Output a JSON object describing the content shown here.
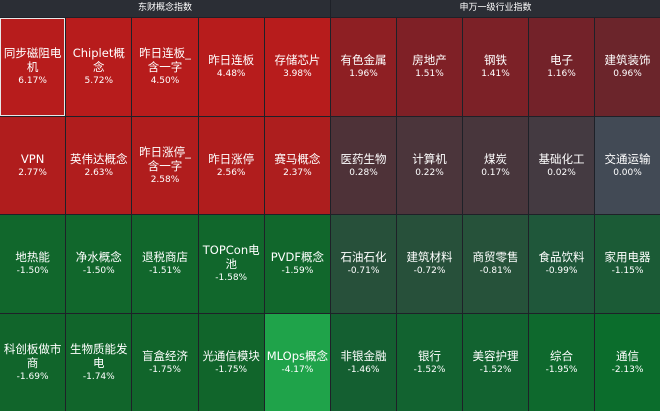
{
  "left_panel": {
    "title": "东财概念指数",
    "tiles": [
      {
        "name": "同步磁阻电机",
        "change": "6.17%",
        "color": "#b71c1c",
        "selected": true
      },
      {
        "name": "Chiplet概念",
        "change": "5.72%",
        "color": "#b71c1c"
      },
      {
        "name": "昨日连板_含一字",
        "change": "4.50%",
        "color": "#b71c1c"
      },
      {
        "name": "昨日连板",
        "change": "4.48%",
        "color": "#b71c1c"
      },
      {
        "name": "存储芯片",
        "change": "3.98%",
        "color": "#b71c1c"
      },
      {
        "name": "VPN",
        "change": "2.77%",
        "color": "#b01d1d"
      },
      {
        "name": "英伟达概念",
        "change": "2.63%",
        "color": "#b01d1d"
      },
      {
        "name": "昨日涨停_含一字",
        "change": "2.58%",
        "color": "#b01d1d"
      },
      {
        "name": "昨日涨停",
        "change": "2.56%",
        "color": "#b01d1d"
      },
      {
        "name": "赛马概念",
        "change": "2.37%",
        "color": "#ad1e1e"
      },
      {
        "name": "地热能",
        "change": "-1.50%",
        "color": "#11672c"
      },
      {
        "name": "净水概念",
        "change": "-1.50%",
        "color": "#11672c"
      },
      {
        "name": "退税商店",
        "change": "-1.51%",
        "color": "#11672c"
      },
      {
        "name": "TOPCon电池",
        "change": "-1.58%",
        "color": "#11672c"
      },
      {
        "name": "PVDF概念",
        "change": "-1.59%",
        "color": "#11672c"
      },
      {
        "name": "科创板做市商",
        "change": "-1.69%",
        "color": "#11652b"
      },
      {
        "name": "生物质能发电",
        "change": "-1.74%",
        "color": "#11652b"
      },
      {
        "name": "盲盒经济",
        "change": "-1.75%",
        "color": "#11652b"
      },
      {
        "name": "光通信模块",
        "change": "-1.75%",
        "color": "#11652b"
      },
      {
        "name": "MLOps概念",
        "change": "-4.17%",
        "color": "#1fa34a"
      }
    ]
  },
  "right_panel": {
    "title": "申万一级行业指数",
    "tiles": [
      {
        "name": "有色金属",
        "change": "1.96%",
        "color": "#8e1f23"
      },
      {
        "name": "房地产",
        "change": "1.51%",
        "color": "#7f2026"
      },
      {
        "name": "钢铁",
        "change": "1.41%",
        "color": "#7c2127"
      },
      {
        "name": "电子",
        "change": "1.16%",
        "color": "#732229"
      },
      {
        "name": "建筑装饰",
        "change": "0.96%",
        "color": "#6b252b"
      },
      {
        "name": "医药生物",
        "change": "0.28%",
        "color": "#4e3238"
      },
      {
        "name": "计算机",
        "change": "0.22%",
        "color": "#4b353b"
      },
      {
        "name": "煤炭",
        "change": "0.17%",
        "color": "#48363c"
      },
      {
        "name": "基础化工",
        "change": "0.02%",
        "color": "#443a41"
      },
      {
        "name": "交通运输",
        "change": "0.00%",
        "color": "#424a55"
      },
      {
        "name": "石油石化",
        "change": "-0.71%",
        "color": "#27503a"
      },
      {
        "name": "建筑材料",
        "change": "-0.72%",
        "color": "#27503a"
      },
      {
        "name": "商贸零售",
        "change": "-0.81%",
        "color": "#26523a"
      },
      {
        "name": "食品饮料",
        "change": "-0.99%",
        "color": "#1f573a"
      },
      {
        "name": "家用电器",
        "change": "-1.15%",
        "color": "#1b5b36"
      },
      {
        "name": "非银金融",
        "change": "-1.46%",
        "color": "#145f31"
      },
      {
        "name": "银行",
        "change": "-1.52%",
        "color": "#126330"
      },
      {
        "name": "美容护理",
        "change": "-1.52%",
        "color": "#126330"
      },
      {
        "name": "综合",
        "change": "-1.95%",
        "color": "#0e692d"
      },
      {
        "name": "通信",
        "change": "-2.13%",
        "color": "#0b6d2c"
      }
    ]
  }
}
